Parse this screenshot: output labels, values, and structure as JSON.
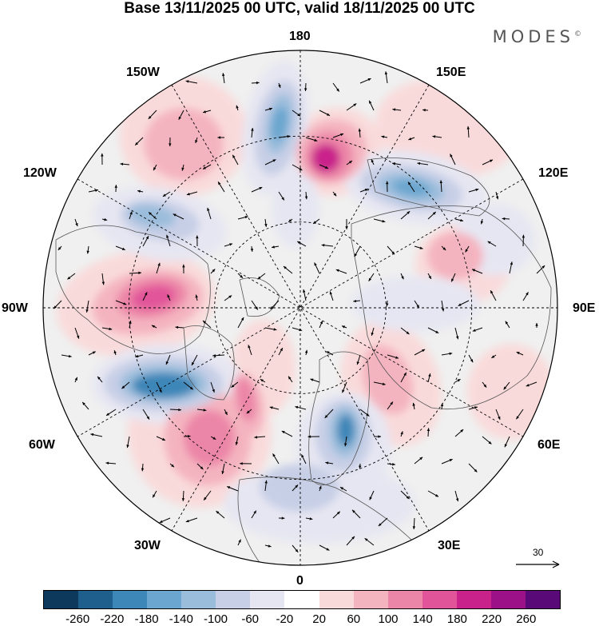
{
  "title": "Base 13/11/2025 00 UTC, valid 18/11/2025 00 UTC",
  "brand": "MODES",
  "brand_mark": "©",
  "map_labels": {
    "top": "180",
    "upper_left": "150W",
    "upper_right": "150E",
    "left_upper": "120W",
    "right_upper": "120E",
    "left": "90W",
    "right": "90E",
    "left_lower": "60W",
    "right_lower": "60E",
    "lower_left": "30W",
    "lower_right": "30E",
    "bottom": "0"
  },
  "reference_vector": "30",
  "colorbar": {
    "colors": [
      "#0d3a5c",
      "#1f5f8e",
      "#3c86b8",
      "#6aa6cf",
      "#9bbddc",
      "#c7cfe6",
      "#e6e6f2",
      "#ffffff",
      "#f9dada",
      "#f4b4bf",
      "#ec86a8",
      "#e2549a",
      "#c9238b",
      "#9c1088",
      "#5a0a78"
    ],
    "tick_labels": [
      "-260",
      "-220",
      "-180",
      "-140",
      "-100",
      "-60",
      "-20",
      "20",
      "60",
      "100",
      "140",
      "180",
      "220",
      "260"
    ]
  }
}
